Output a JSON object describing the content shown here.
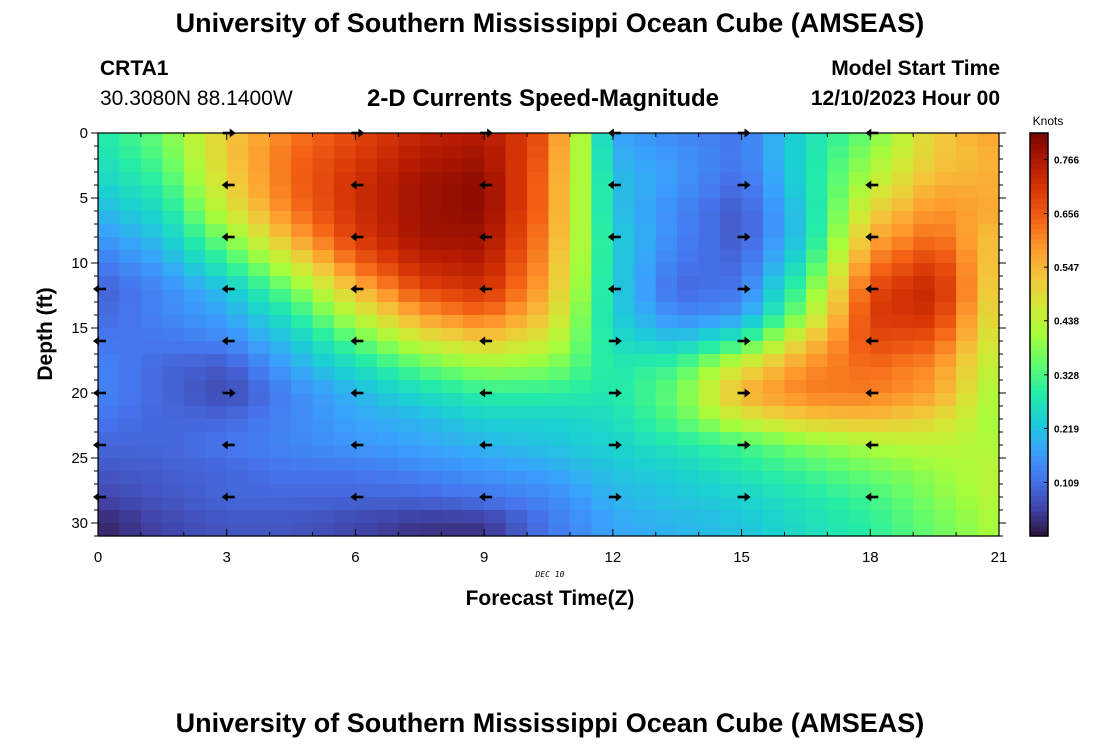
{
  "header": {
    "title": "University of Southern Mississippi Ocean Cube (AMSEAS)",
    "station": "CRTA1",
    "coordinates": "30.3080N  88.1400W",
    "subtitle": "2-D Currents Speed-Magnitude",
    "model_start_label": "Model Start Time",
    "model_start_value": "12/10/2023 Hour 00"
  },
  "footer": {
    "title": "University of Southern Mississippi Ocean Cube (AMSEAS)"
  },
  "chart_data": {
    "type": "heatmap",
    "title": "2-D Currents Speed-Magnitude",
    "xlabel": "Forecast Time(Z)",
    "ylabel": "Depth (ft)",
    "date_label": "DEC 10",
    "xlim": [
      0,
      21
    ],
    "ylim": [
      31,
      0
    ],
    "x_ticks": [
      "0",
      "3",
      "6",
      "9",
      "12",
      "15",
      "18",
      "21"
    ],
    "y_ticks": [
      "0",
      "5",
      "10",
      "15",
      "20",
      "25",
      "30"
    ],
    "colorbar": {
      "label": "Knots",
      "min": 0.0,
      "max": 0.82,
      "ticks": [
        "0.109",
        "0.219",
        "0.328",
        "0.438",
        "0.547",
        "0.656",
        "0.766"
      ]
    },
    "colormap": [
      "#30123b",
      "#4145ab",
      "#4675ed",
      "#39a2fc",
      "#1bcfd4",
      "#24eca6",
      "#61fc6c",
      "#a4fc3b",
      "#d1e834",
      "#f3c63a",
      "#fe9b2d",
      "#f36315",
      "#d93806",
      "#b11901",
      "#7a0402"
    ],
    "speed_x": [
      0,
      1.5,
      3,
      4.5,
      6,
      7.5,
      9,
      10.5,
      12,
      13.5,
      15,
      16.5,
      18,
      19.5,
      21
    ],
    "speed_depth": [
      0,
      2,
      4,
      6,
      8,
      10,
      12,
      14,
      16,
      18,
      20,
      22,
      24,
      26,
      28,
      30
    ],
    "speed": [
      [
        0.28,
        0.36,
        0.52,
        0.62,
        0.68,
        0.74,
        0.76,
        0.66,
        0.18,
        0.14,
        0.12,
        0.26,
        0.36,
        0.52,
        0.58
      ],
      [
        0.26,
        0.34,
        0.52,
        0.64,
        0.7,
        0.76,
        0.78,
        0.64,
        0.2,
        0.16,
        0.12,
        0.26,
        0.4,
        0.52,
        0.56
      ],
      [
        0.24,
        0.3,
        0.5,
        0.64,
        0.72,
        0.78,
        0.8,
        0.62,
        0.22,
        0.16,
        0.1,
        0.26,
        0.44,
        0.56,
        0.56
      ],
      [
        0.2,
        0.26,
        0.46,
        0.62,
        0.72,
        0.78,
        0.8,
        0.62,
        0.22,
        0.14,
        0.08,
        0.24,
        0.5,
        0.6,
        0.56
      ],
      [
        0.16,
        0.22,
        0.38,
        0.56,
        0.7,
        0.78,
        0.78,
        0.6,
        0.24,
        0.14,
        0.08,
        0.24,
        0.56,
        0.64,
        0.52
      ],
      [
        0.12,
        0.18,
        0.3,
        0.46,
        0.64,
        0.74,
        0.76,
        0.58,
        0.24,
        0.12,
        0.1,
        0.28,
        0.62,
        0.7,
        0.5
      ],
      [
        0.09,
        0.14,
        0.22,
        0.36,
        0.54,
        0.68,
        0.72,
        0.56,
        0.24,
        0.1,
        0.12,
        0.34,
        0.68,
        0.74,
        0.48
      ],
      [
        0.1,
        0.14,
        0.18,
        0.28,
        0.44,
        0.58,
        0.64,
        0.52,
        0.24,
        0.14,
        0.16,
        0.4,
        0.7,
        0.72,
        0.46
      ],
      [
        0.12,
        0.12,
        0.14,
        0.22,
        0.34,
        0.46,
        0.52,
        0.46,
        0.26,
        0.22,
        0.3,
        0.52,
        0.68,
        0.66,
        0.44
      ],
      [
        0.14,
        0.1,
        0.08,
        0.18,
        0.26,
        0.34,
        0.4,
        0.38,
        0.28,
        0.32,
        0.48,
        0.6,
        0.64,
        0.6,
        0.42
      ],
      [
        0.14,
        0.1,
        0.06,
        0.14,
        0.2,
        0.26,
        0.3,
        0.3,
        0.28,
        0.36,
        0.56,
        0.62,
        0.62,
        0.58,
        0.4
      ],
      [
        0.12,
        0.1,
        0.1,
        0.14,
        0.18,
        0.2,
        0.24,
        0.24,
        0.26,
        0.34,
        0.46,
        0.52,
        0.54,
        0.5,
        0.4
      ],
      [
        0.1,
        0.1,
        0.12,
        0.14,
        0.16,
        0.18,
        0.2,
        0.22,
        0.24,
        0.28,
        0.32,
        0.38,
        0.42,
        0.44,
        0.42
      ],
      [
        0.08,
        0.09,
        0.1,
        0.12,
        0.12,
        0.14,
        0.16,
        0.18,
        0.22,
        0.24,
        0.28,
        0.32,
        0.36,
        0.4,
        0.44
      ],
      [
        0.06,
        0.08,
        0.1,
        0.1,
        0.1,
        0.1,
        0.12,
        0.14,
        0.2,
        0.22,
        0.24,
        0.28,
        0.32,
        0.38,
        0.44
      ],
      [
        0.02,
        0.06,
        0.08,
        0.08,
        0.06,
        0.04,
        0.04,
        0.12,
        0.18,
        0.2,
        0.22,
        0.26,
        0.3,
        0.36,
        0.42
      ]
    ],
    "vectors": [
      {
        "x": 0,
        "depth": 12,
        "dir": "left"
      },
      {
        "x": 0,
        "depth": 16,
        "dir": "left"
      },
      {
        "x": 0,
        "depth": 20,
        "dir": "left"
      },
      {
        "x": 0,
        "depth": 24,
        "dir": "left"
      },
      {
        "x": 0,
        "depth": 28,
        "dir": "left"
      },
      {
        "x": 3,
        "depth": 0,
        "dir": "right"
      },
      {
        "x": 3,
        "depth": 4,
        "dir": "left"
      },
      {
        "x": 3,
        "depth": 8,
        "dir": "left"
      },
      {
        "x": 3,
        "depth": 12,
        "dir": "left"
      },
      {
        "x": 3,
        "depth": 16,
        "dir": "left"
      },
      {
        "x": 3,
        "depth": 20,
        "dir": "right"
      },
      {
        "x": 3,
        "depth": 24,
        "dir": "left"
      },
      {
        "x": 3,
        "depth": 28,
        "dir": "left"
      },
      {
        "x": 6,
        "depth": 0,
        "dir": "right"
      },
      {
        "x": 6,
        "depth": 4,
        "dir": "left"
      },
      {
        "x": 6,
        "depth": 8,
        "dir": "left"
      },
      {
        "x": 6,
        "depth": 12,
        "dir": "left"
      },
      {
        "x": 6,
        "depth": 16,
        "dir": "left"
      },
      {
        "x": 6,
        "depth": 20,
        "dir": "left"
      },
      {
        "x": 6,
        "depth": 24,
        "dir": "left"
      },
      {
        "x": 6,
        "depth": 28,
        "dir": "left"
      },
      {
        "x": 9,
        "depth": 0,
        "dir": "right"
      },
      {
        "x": 9,
        "depth": 4,
        "dir": "left"
      },
      {
        "x": 9,
        "depth": 8,
        "dir": "left"
      },
      {
        "x": 9,
        "depth": 12,
        "dir": "left"
      },
      {
        "x": 9,
        "depth": 16,
        "dir": "left"
      },
      {
        "x": 9,
        "depth": 20,
        "dir": "left"
      },
      {
        "x": 9,
        "depth": 24,
        "dir": "left"
      },
      {
        "x": 9,
        "depth": 28,
        "dir": "left"
      },
      {
        "x": 12,
        "depth": 0,
        "dir": "left"
      },
      {
        "x": 12,
        "depth": 4,
        "dir": "left"
      },
      {
        "x": 12,
        "depth": 8,
        "dir": "left"
      },
      {
        "x": 12,
        "depth": 12,
        "dir": "left"
      },
      {
        "x": 12,
        "depth": 16,
        "dir": "right"
      },
      {
        "x": 12,
        "depth": 20,
        "dir": "right"
      },
      {
        "x": 12,
        "depth": 24,
        "dir": "right"
      },
      {
        "x": 12,
        "depth": 28,
        "dir": "right"
      },
      {
        "x": 15,
        "depth": 0,
        "dir": "right"
      },
      {
        "x": 15,
        "depth": 4,
        "dir": "right"
      },
      {
        "x": 15,
        "depth": 8,
        "dir": "right"
      },
      {
        "x": 15,
        "depth": 12,
        "dir": "right"
      },
      {
        "x": 15,
        "depth": 16,
        "dir": "right"
      },
      {
        "x": 15,
        "depth": 20,
        "dir": "right"
      },
      {
        "x": 15,
        "depth": 24,
        "dir": "right"
      },
      {
        "x": 15,
        "depth": 28,
        "dir": "right"
      },
      {
        "x": 18,
        "depth": 0,
        "dir": "left"
      },
      {
        "x": 18,
        "depth": 4,
        "dir": "left"
      },
      {
        "x": 18,
        "depth": 8,
        "dir": "left"
      },
      {
        "x": 18,
        "depth": 12,
        "dir": "left"
      },
      {
        "x": 18,
        "depth": 16,
        "dir": "left"
      },
      {
        "x": 18,
        "depth": 20,
        "dir": "left"
      },
      {
        "x": 18,
        "depth": 24,
        "dir": "left"
      },
      {
        "x": 18,
        "depth": 28,
        "dir": "left"
      }
    ]
  }
}
